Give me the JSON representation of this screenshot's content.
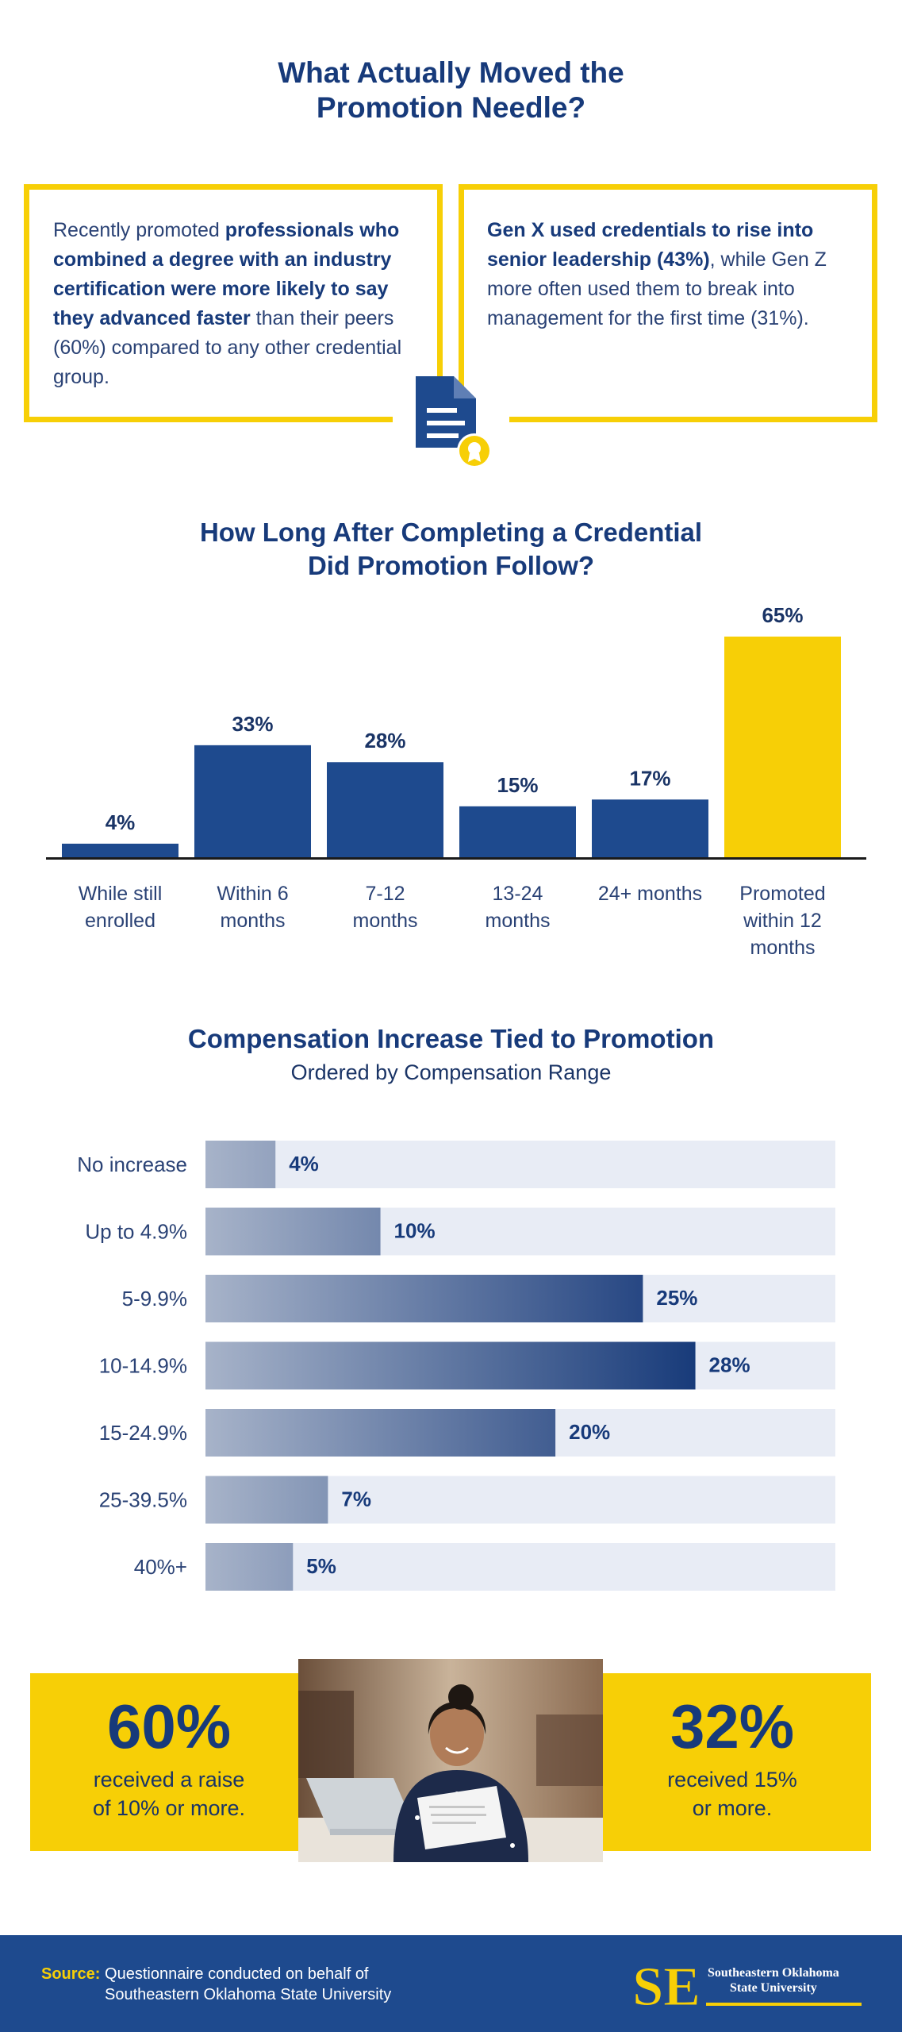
{
  "header": {
    "title_line1": "What Actually Moved the",
    "title_line2": "Promotion Needle?"
  },
  "callouts": {
    "left": {
      "pre": "Recently promoted ",
      "bold": "professionals who combined a degree with an industry certification were more likely to say they advanced faster",
      "post": " than their peers (60%) compared to any other credential group."
    },
    "right": {
      "bold": "Gen X used credentials to rise into senior leadership (43%)",
      "post": ", while Gen Z more often used them to break into management for the first time (31%)."
    },
    "icon": "certificate-document-icon"
  },
  "chart1_heading": {
    "line1": "How Long After Completing a Credential",
    "line2": "Did Promotion Follow?"
  },
  "chart2_heading": {
    "title": "Compensation Increase Tied to Promotion",
    "subtitle": "Ordered by Compensation Range"
  },
  "chart_data": [
    {
      "type": "bar",
      "title": "How Long After Completing a Credential Did Promotion Follow?",
      "categories": [
        [
          "While still",
          "enrolled"
        ],
        [
          "Within 6",
          "months"
        ],
        [
          "7-12",
          "months"
        ],
        [
          "13-24",
          "months"
        ],
        [
          "24+ months"
        ],
        [
          "Promoted",
          "within 12",
          "months"
        ]
      ],
      "values": [
        4,
        33,
        28,
        15,
        17,
        65
      ],
      "value_labels": [
        "4%",
        "33%",
        "28%",
        "15%",
        "17%",
        "65%"
      ],
      "colors": [
        "#1e4a8e",
        "#1e4a8e",
        "#1e4a8e",
        "#1e4a8e",
        "#1e4a8e",
        "#f7cf06"
      ],
      "ylim": [
        0,
        65
      ],
      "grid": false
    },
    {
      "type": "bar",
      "orientation": "horizontal",
      "title": "Compensation Increase Tied to Promotion",
      "subtitle": "Ordered by Compensation Range",
      "categories": [
        "No increase",
        "Up to 4.9%",
        "5-9.9%",
        "10-14.9%",
        "15-24.9%",
        "25-39.5%",
        "40%+"
      ],
      "values": [
        4,
        10,
        25,
        28,
        20,
        7,
        5
      ],
      "value_labels": [
        "4%",
        "10%",
        "25%",
        "28%",
        "20%",
        "7%",
        "5%"
      ],
      "xlim": [
        0,
        36
      ],
      "track_color": "#e8ecf5",
      "gradient": [
        "#a7b3c9",
        "#173a7a"
      ],
      "grid": false
    }
  ],
  "stats": {
    "left": {
      "value": "60%",
      "line1": "received a raise",
      "line2": "of 10% or more."
    },
    "right": {
      "value": "32%",
      "line1": "received 15%",
      "line2": "or more."
    }
  },
  "footer": {
    "source_label": "Source:",
    "source_line1": "Questionnaire conducted on behalf of",
    "source_line2": "Southeastern Oklahoma State University",
    "logo_line1": "Southeastern Oklahoma",
    "logo_line2": "State University",
    "logo_mark": "SE"
  },
  "colors": {
    "navy": "#173a7a",
    "bar_blue": "#1e4a8e",
    "accent_yellow": "#f7cf06"
  }
}
